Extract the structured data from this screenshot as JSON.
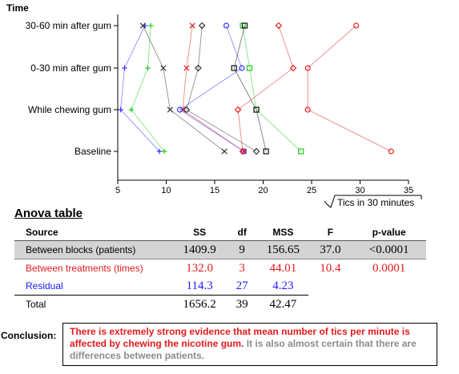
{
  "chart_data": {
    "type": "scatter",
    "ylabel": "Time",
    "xlabel_prefix": "√",
    "xlabel": "Tics in 30 minutes",
    "xlim": [
      5,
      35
    ],
    "xticks": [
      5,
      10,
      15,
      20,
      25,
      30,
      35
    ],
    "categories": [
      "Baseline",
      "While chewing gum",
      "0-30 min after gum",
      "30-60 min after gum"
    ],
    "series": [
      {
        "color": "#3333ff",
        "marker": "plus",
        "values": [
          9.3,
          5.3,
          5.7,
          7.8
        ]
      },
      {
        "color": "#22cc22",
        "marker": "plus",
        "values": [
          9.8,
          6.4,
          8.1,
          8.4
        ]
      },
      {
        "color": "#e22222",
        "marker": "cross",
        "values": [
          18.0,
          11.7,
          12.1,
          12.7
        ]
      },
      {
        "color": "#333333",
        "marker": "cross",
        "values": [
          16.0,
          10.4,
          9.7,
          7.6
        ]
      },
      {
        "color": "#333333",
        "marker": "diamond",
        "values": [
          19.3,
          12.1,
          13.3,
          13.7
        ]
      },
      {
        "color": "#3333ff",
        "marker": "circle",
        "values": [
          18.0,
          11.4,
          17.8,
          16.2
        ]
      },
      {
        "color": "#22cc22",
        "marker": "square",
        "values": [
          23.9,
          19.3,
          18.6,
          17.9
        ]
      },
      {
        "color": "#111111",
        "marker": "square",
        "values": [
          20.3,
          19.3,
          17.0,
          18.1
        ]
      },
      {
        "color": "#e22222",
        "marker": "diamond",
        "values": [
          17.9,
          17.4,
          23.1,
          21.6
        ]
      },
      {
        "color": "#e22222",
        "marker": "circle",
        "values": [
          33.2,
          24.6,
          24.6,
          29.6
        ]
      }
    ]
  },
  "anova": {
    "title": "Anova table",
    "headers": {
      "source": "Source",
      "ss": "SS",
      "df": "df",
      "mss": "MSS",
      "f": "F",
      "p": "p-value"
    },
    "rows": [
      {
        "source": "Between blocks (patients)",
        "ss": "1409.9",
        "df": "9",
        "mss": "156.65",
        "f": "37.0",
        "p": "<0.0001"
      },
      {
        "source": "Between treatments (times)",
        "ss": "132.0",
        "df": "3",
        "mss": "44.01",
        "f": "10.4",
        "p": "0.0001"
      },
      {
        "source": "Residual",
        "ss": "114.3",
        "df": "27",
        "mss": "4.23"
      },
      {
        "source": "Total",
        "ss": "1656.2",
        "df": "39",
        "mss": "42.47"
      }
    ]
  },
  "conclusion": {
    "label": "Conclusion:",
    "text_red": "There is extremely strong evidence that mean number of tics per minute is affected by chewing the nicotine gum.",
    "text_grey": " It is also almost certain that there are differences between patients."
  },
  "colors": {
    "treatment_red": "#e21b1b",
    "residual_blue": "#1a1aff",
    "blocks_bg": "#d4d4d4"
  }
}
